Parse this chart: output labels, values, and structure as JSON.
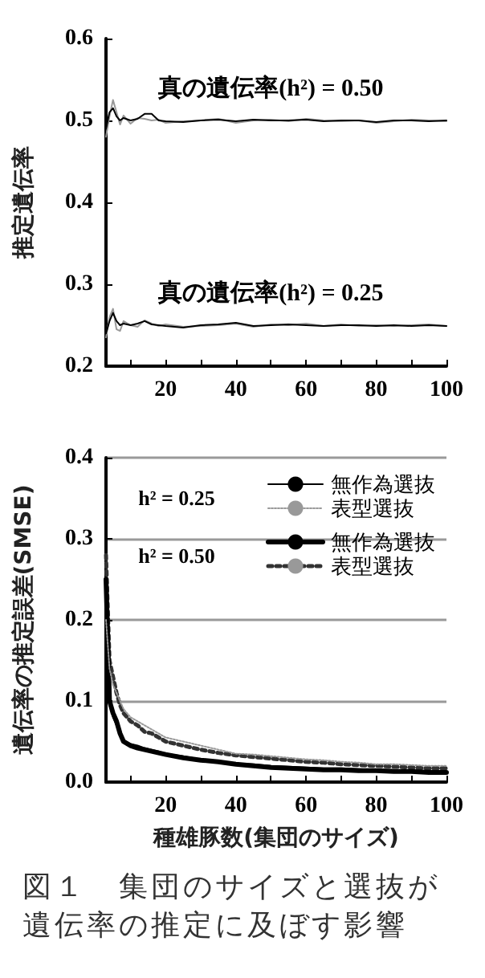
{
  "chart_data": [
    {
      "type": "line",
      "ylabel": "推定遺伝率",
      "marker": "none",
      "line_style": "solid",
      "x": [
        3,
        4,
        5,
        6,
        7,
        8,
        10,
        12,
        14,
        16,
        18,
        20,
        25,
        30,
        35,
        40,
        45,
        50,
        55,
        60,
        65,
        70,
        75,
        80,
        85,
        90,
        95,
        100
      ],
      "xlim": [
        3,
        100
      ],
      "xticks": [
        {
          "value": 10,
          "label": null
        },
        20,
        {
          "value": 30,
          "label": null
        },
        40,
        {
          "value": 50,
          "label": null
        },
        60,
        {
          "value": 70,
          "label": null
        },
        80,
        {
          "value": 90,
          "label": null
        },
        100
      ],
      "ylim": [
        0.2,
        0.6
      ],
      "yticks": [
        0.2,
        0.3,
        0.4,
        0.5,
        0.6
      ],
      "annotations": [
        {
          "text": "真の遺伝率(h²) = 0.50",
          "x": 50,
          "y": 0.5
        },
        {
          "text": "真の遺伝率(h²) = 0.25",
          "x": 50,
          "y": 0.25
        }
      ],
      "series": [
        {
          "color": "#000000",
          "values": [
            0.24,
            0.255,
            0.265,
            0.255,
            0.25,
            0.252,
            0.25,
            0.252,
            0.255,
            0.251,
            0.25,
            0.249,
            0.247,
            0.25,
            0.251,
            0.253,
            0.249,
            0.25,
            0.251,
            0.25,
            0.249,
            0.25,
            0.25,
            0.249,
            0.25,
            0.249,
            0.25,
            0.249
          ]
        },
        {
          "color": "#999999",
          "values": [
            0.235,
            0.26,
            0.27,
            0.245,
            0.243,
            0.255,
            0.25,
            0.248,
            0.256,
            0.252,
            0.249,
            0.251,
            0.248,
            0.249,
            0.25,
            0.252,
            0.248,
            0.251,
            0.25,
            0.252,
            0.249,
            0.251,
            0.249,
            0.25,
            0.249,
            0.25,
            0.251,
            0.249
          ]
        },
        {
          "color": "#000000",
          "values": [
            0.49,
            0.51,
            0.515,
            0.505,
            0.5,
            0.503,
            0.5,
            0.502,
            0.508,
            0.508,
            0.5,
            0.499,
            0.498,
            0.5,
            0.501,
            0.499,
            0.501,
            0.5,
            0.5,
            0.501,
            0.499,
            0.5,
            0.5,
            0.498,
            0.5,
            0.5,
            0.499,
            0.5
          ]
        },
        {
          "color": "#999999",
          "values": [
            0.48,
            0.505,
            0.525,
            0.51,
            0.495,
            0.506,
            0.496,
            0.503,
            0.502,
            0.5,
            0.501,
            0.497,
            0.499,
            0.5,
            0.502,
            0.497,
            0.5,
            0.501,
            0.499,
            0.502,
            0.5,
            0.499,
            0.5,
            0.497,
            0.499,
            0.501,
            0.5,
            0.499
          ]
        }
      ]
    },
    {
      "type": "line",
      "xlabel": "種雄豚数(集団のサイズ)",
      "ylabel": "遺伝率の推定誤差(SMSE)",
      "marker": "none",
      "grid": "y",
      "legend": "top right",
      "x": [
        3,
        4,
        5,
        6,
        7,
        8,
        10,
        12,
        14,
        16,
        18,
        20,
        25,
        30,
        35,
        40,
        45,
        50,
        55,
        60,
        65,
        70,
        75,
        80,
        85,
        90,
        95,
        100
      ],
      "xlim": [
        3,
        100
      ],
      "xticks": [
        {
          "value": 10,
          "label": null
        },
        20,
        {
          "value": 30,
          "label": null
        },
        40,
        {
          "value": 50,
          "label": null
        },
        60,
        {
          "value": 70,
          "label": null
        },
        80,
        {
          "value": 90,
          "label": null
        },
        100
      ],
      "ylim": [
        0,
        0.4
      ],
      "yticks": [
        {
          "value": 0,
          "label": "0.0"
        },
        0.1,
        0.2,
        0.3,
        0.4
      ],
      "annotations": [
        "h² = 0.25",
        "h² = 0.50",
        "図１　集団のサイズと選抜が遺伝率の推定に及ぼす影響"
      ],
      "series": [
        {
          "name": "無作為選抜",
          "color": "#000000",
          "line_style": "solid",
          "values": [
            0.15,
            0.1,
            0.08,
            0.07,
            0.06,
            0.052,
            0.047,
            0.045,
            0.042,
            0.04,
            0.038,
            0.035,
            0.032,
            0.028,
            0.026,
            0.023,
            0.022,
            0.02,
            0.019,
            0.018,
            0.017,
            0.017,
            0.016,
            0.015,
            0.015,
            0.014,
            0.014,
            0.013
          ]
        },
        {
          "name": "表型選抜",
          "color": "#999999",
          "line_style": "dotted",
          "values": [
            0.2,
            0.14,
            0.12,
            0.11,
            0.1,
            0.09,
            0.08,
            0.075,
            0.07,
            0.065,
            0.06,
            0.055,
            0.05,
            0.045,
            0.04,
            0.035,
            0.034,
            0.032,
            0.03,
            0.028,
            0.027,
            0.025,
            0.024,
            0.022,
            0.022,
            0.021,
            0.02,
            0.02
          ]
        },
        {
          "name": "無作為選抜",
          "color": "#000000",
          "line_style": "solid",
          "values": [
            0.25,
            0.1,
            0.085,
            0.075,
            0.06,
            0.05,
            0.045,
            0.042,
            0.04,
            0.038,
            0.036,
            0.034,
            0.03,
            0.027,
            0.025,
            0.022,
            0.02,
            0.018,
            0.017,
            0.016,
            0.015,
            0.015,
            0.014,
            0.014,
            0.013,
            0.013,
            0.012,
            0.012
          ]
        },
        {
          "name": "表型選抜",
          "color": "#333333",
          "line_style": "dotted",
          "values": [
            0.28,
            0.15,
            0.13,
            0.11,
            0.095,
            0.085,
            0.075,
            0.07,
            0.062,
            0.06,
            0.055,
            0.05,
            0.045,
            0.04,
            0.036,
            0.033,
            0.031,
            0.029,
            0.027,
            0.025,
            0.024,
            0.022,
            0.021,
            0.02,
            0.019,
            0.018,
            0.017,
            0.017
          ]
        }
      ]
    }
  ]
}
